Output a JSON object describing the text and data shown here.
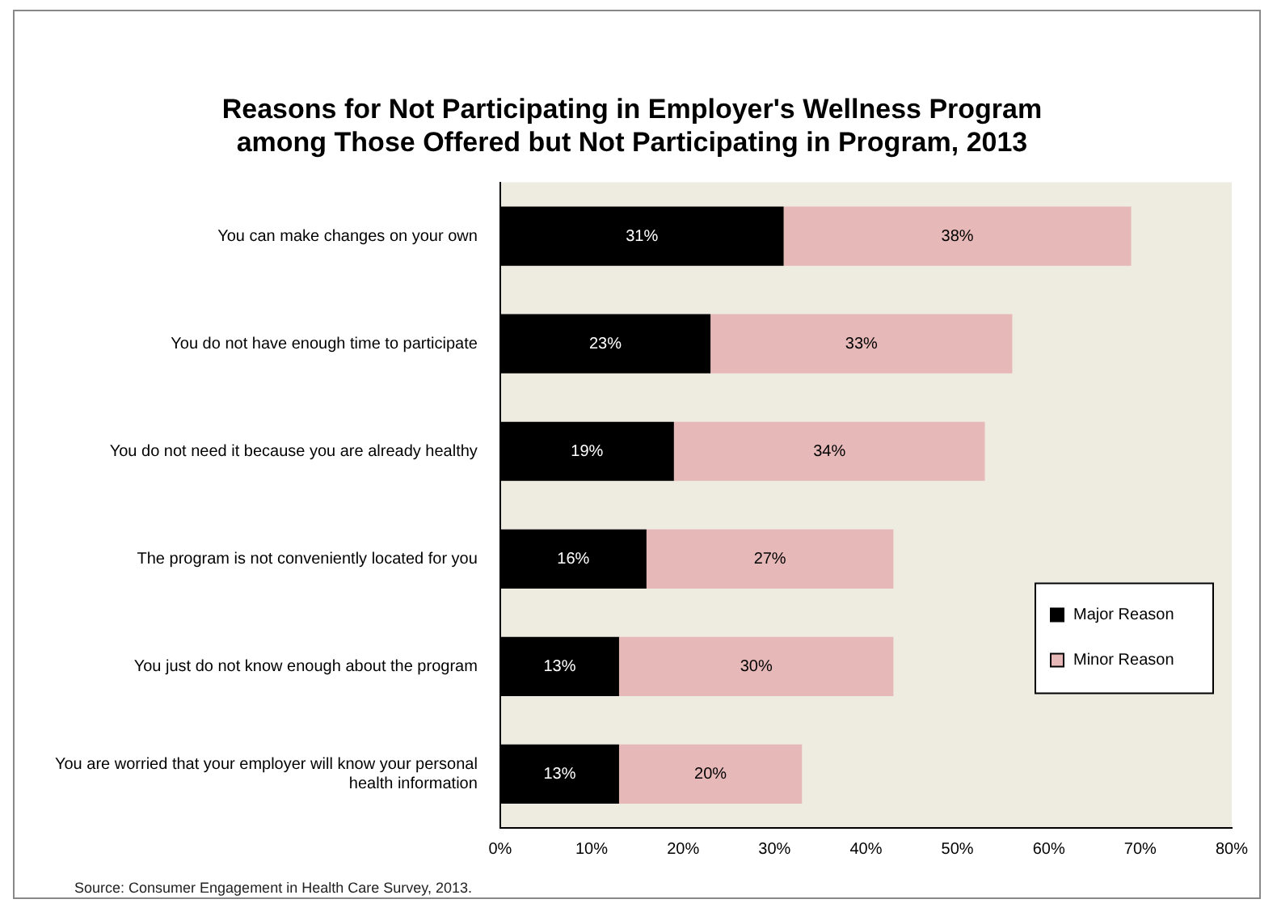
{
  "chart_data": {
    "type": "bar",
    "orientation": "horizontal",
    "stacked": true,
    "title": "Reasons for Not Participating in Employer's Wellness Program among Those Offered but Not Participating in Program, 2013",
    "categories": [
      "You can make changes on your own",
      "You do not have enough time to participate",
      "You do not need it because you are already healthy",
      "The program is not conveniently located for you",
      "You just do not know enough about the program",
      "You are worried that your employer will know your personal health information"
    ],
    "series": [
      {
        "name": "Major Reason",
        "color": "#000000",
        "values": [
          31,
          23,
          19,
          16,
          13,
          13
        ],
        "value_labels": [
          "31%",
          "23%",
          "19%",
          "16%",
          "13%",
          "13%"
        ]
      },
      {
        "name": "Minor Reason",
        "color": "#e6b8b7",
        "values": [
          38,
          33,
          34,
          27,
          30,
          20
        ],
        "value_labels": [
          "38%",
          "33%",
          "34%",
          "27%",
          "30%",
          "20%"
        ]
      }
    ],
    "xlim": [
      0,
      80
    ],
    "xticks": [
      {
        "value": 0,
        "label": "0%"
      },
      {
        "value": 10,
        "label": "10%"
      },
      {
        "value": 20,
        "label": "20%"
      },
      {
        "value": 30,
        "label": "30%"
      },
      {
        "value": 40,
        "label": "40%"
      },
      {
        "value": 50,
        "label": "50%"
      },
      {
        "value": 60,
        "label": "60%"
      },
      {
        "value": 70,
        "label": "70%"
      },
      {
        "value": 80,
        "label": "80%"
      }
    ],
    "grid": false,
    "legend": "right",
    "annotations": [
      "Source: Consumer Engagement in Health Care Survey, 2013."
    ]
  }
}
